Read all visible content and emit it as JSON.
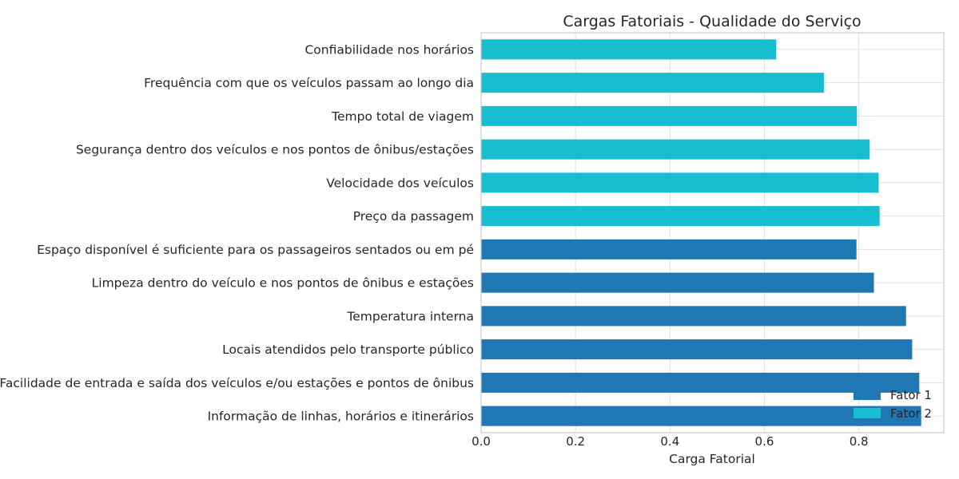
{
  "chart_data": {
    "type": "bar",
    "orientation": "horizontal",
    "title": "Cargas Fatoriais - Qualidade do Serviço",
    "xlabel": "Carga Fatorial",
    "ylabel": "",
    "xlim": [
      0,
      0.98
    ],
    "xticks": [
      "0.0",
      "0.2",
      "0.4",
      "0.6",
      "0.8"
    ],
    "grid": true,
    "legend_position": "lower-right",
    "categories": [
      "Confiabilidade nos horários",
      "Frequência com que os veículos passam ao longo dia",
      "Tempo total de viagem",
      "Segurança dentro dos veículos e nos pontos de ônibus/estações",
      "Velocidade dos veículos",
      "Preço da passagem",
      "Espaço disponível é suficiente para os passageiros sentados ou em pé",
      "Limpeza dentro do veículo e nos pontos de ônibus e estações",
      "Temperatura interna",
      "Locais atendidos pelo transporte público",
      "Facilidade de entrada e saída dos veículos e/ou estações e pontos de ônibus",
      "Informação de linhas, horários e itinerários"
    ],
    "values": [
      0.625,
      0.726,
      0.796,
      0.823,
      0.842,
      0.844,
      0.795,
      0.832,
      0.9,
      0.913,
      0.928,
      0.932
    ],
    "groups": [
      "Fator 2",
      "Fator 2",
      "Fator 2",
      "Fator 2",
      "Fator 2",
      "Fator 2",
      "Fator 1",
      "Fator 1",
      "Fator 1",
      "Fator 1",
      "Fator 1",
      "Fator 1"
    ],
    "series": [
      {
        "name": "Fator 1",
        "color": "#1f77b4"
      },
      {
        "name": "Fator 2",
        "color": "#17becf"
      }
    ]
  }
}
